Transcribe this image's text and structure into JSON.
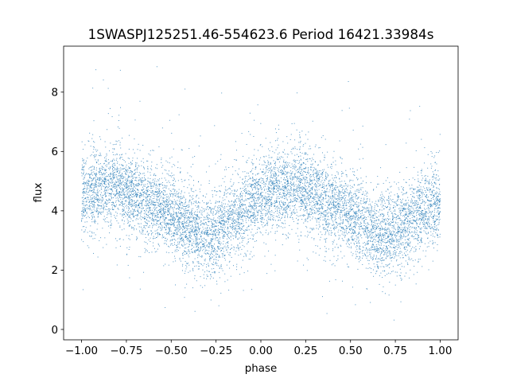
{
  "chart_data": {
    "type": "scatter",
    "title": "1SWASPJ125251.46-554623.6 Period 16421.33984s",
    "xlabel": "phase",
    "ylabel": "flux",
    "xlim": [
      -1.1,
      1.1
    ],
    "ylim": [
      -0.35,
      9.55
    ],
    "x_ticks": [
      -1.0,
      -0.75,
      -0.5,
      -0.25,
      0.0,
      0.25,
      0.5,
      0.75,
      1.0
    ],
    "x_tick_labels": [
      "−1.00",
      "−0.75",
      "−0.50",
      "−0.25",
      "0.00",
      "0.25",
      "0.50",
      "0.75",
      "1.00"
    ],
    "y_ticks": [
      0,
      2,
      4,
      6,
      8
    ],
    "y_tick_labels": [
      "0",
      "2",
      "4",
      "6",
      "8"
    ],
    "grid": false,
    "legend": "none",
    "marker_color": "#1f77b4",
    "series": [
      {
        "x": [
          -1.0,
          -0.9,
          -0.8,
          -0.7,
          -0.6,
          -0.5,
          -0.4,
          -0.3,
          -0.2,
          -0.1,
          0.0,
          0.1,
          0.2,
          0.3,
          0.4,
          0.5,
          0.6,
          0.7,
          0.8,
          0.9,
          1.0
        ],
        "y": [
          4.5,
          4.8,
          4.8,
          4.5,
          4.2,
          3.9,
          3.4,
          3.2,
          3.5,
          4.0,
          4.5,
          4.8,
          4.8,
          4.5,
          4.2,
          3.9,
          3.4,
          3.2,
          3.5,
          4.0,
          4.3
        ],
        "y_spread": [
          0.9,
          0.9,
          0.9,
          0.9,
          0.9,
          0.9,
          0.9,
          0.9,
          0.9,
          0.9,
          0.9,
          0.9,
          0.9,
          0.9,
          0.9,
          0.9,
          0.9,
          0.9,
          0.9,
          0.9,
          0.9
        ],
        "y_min": 0.0,
        "y_max": 9.2,
        "point_count": 9000
      }
    ]
  }
}
